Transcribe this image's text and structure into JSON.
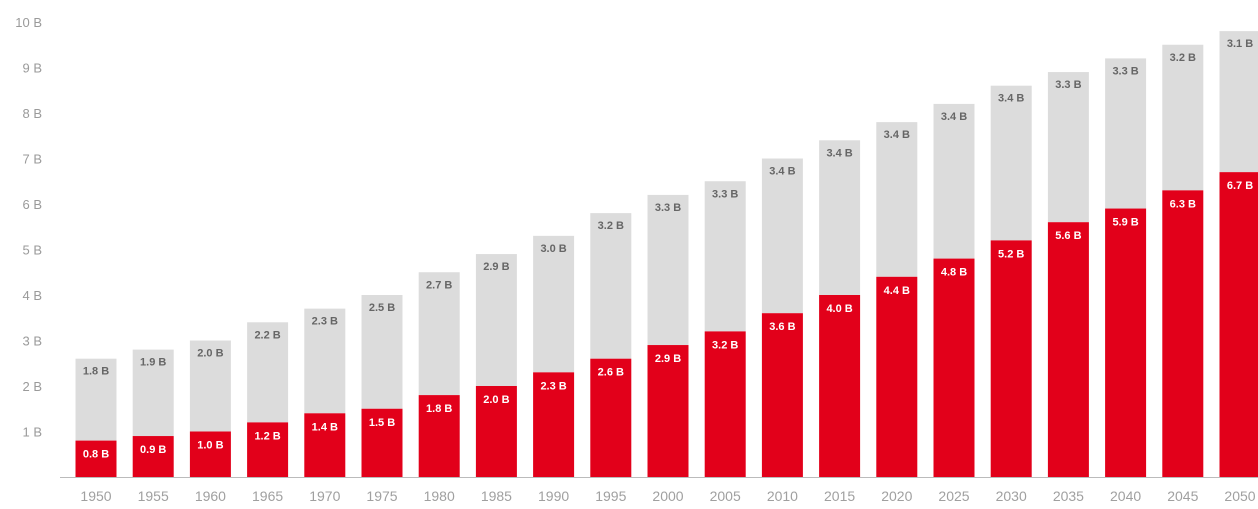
{
  "chart_data": {
    "type": "bar",
    "stacked": true,
    "categories": [
      "1950",
      "1955",
      "1960",
      "1965",
      "1970",
      "1975",
      "1980",
      "1985",
      "1990",
      "1995",
      "2000",
      "2005",
      "2010",
      "2015",
      "2020",
      "2025",
      "2030",
      "2035",
      "2040",
      "2045",
      "2050"
    ],
    "series": [
      {
        "color": "#e2001a",
        "values": [
          0.8,
          0.9,
          1.0,
          1.2,
          1.4,
          1.5,
          1.8,
          2.0,
          2.3,
          2.6,
          2.9,
          3.2,
          3.6,
          4.0,
          4.4,
          4.8,
          5.2,
          5.6,
          5.9,
          6.3,
          6.7
        ],
        "labels": [
          "0.8 B",
          "0.9 B",
          "1.0 B",
          "1.2 B",
          "1.4 B",
          "1.5 B",
          "1.8 B",
          "2.0 B",
          "2.3 B",
          "2.6 B",
          "2.9 B",
          "3.2 B",
          "3.6 B",
          "4.0 B",
          "4.4 B",
          "4.8 B",
          "5.2 B",
          "5.6 B",
          "5.9 B",
          "6.3 B",
          "6.7 B"
        ]
      },
      {
        "color": "#dcdcdc",
        "values": [
          1.8,
          1.9,
          2.0,
          2.2,
          2.3,
          2.5,
          2.7,
          2.9,
          3.0,
          3.2,
          3.3,
          3.3,
          3.4,
          3.4,
          3.4,
          3.4,
          3.4,
          3.3,
          3.3,
          3.2,
          3.1
        ],
        "labels": [
          "1.8 B",
          "1.9 B",
          "2.0 B",
          "2.2 B",
          "2.3 B",
          "2.5 B",
          "2.7 B",
          "2.9 B",
          "3.0 B",
          "3.2 B",
          "3.3 B",
          "3.3 B",
          "3.4 B",
          "3.4 B",
          "3.4 B",
          "3.4 B",
          "3.4 B",
          "3.3 B",
          "3.3 B",
          "3.2 B",
          "3.1 B"
        ]
      }
    ],
    "yticks": [
      {
        "value": 1,
        "label": "1 B"
      },
      {
        "value": 2,
        "label": "2 B"
      },
      {
        "value": 3,
        "label": "3 B"
      },
      {
        "value": 4,
        "label": "4 B"
      },
      {
        "value": 5,
        "label": "5 B"
      },
      {
        "value": 6,
        "label": "6 B"
      },
      {
        "value": 7,
        "label": "7 B"
      },
      {
        "value": 8,
        "label": "8 B"
      },
      {
        "value": 9,
        "label": "9 B"
      },
      {
        "value": 10,
        "label": "10 B"
      }
    ],
    "ylim": [
      0,
      10
    ],
    "axis_color": "#bbbbbb",
    "grid": false,
    "legend": "none",
    "title": "",
    "xlabel": "",
    "ylabel": ""
  }
}
